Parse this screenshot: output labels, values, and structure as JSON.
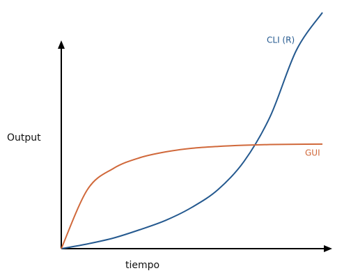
{
  "chart_data": {
    "type": "line",
    "y_label": "Output",
    "x_label": "tiempo",
    "x": [
      0,
      1,
      2,
      3,
      4,
      5,
      6,
      7,
      8,
      9,
      10
    ],
    "xlim": [
      0,
      10
    ],
    "ylim": [
      0,
      10
    ],
    "series": [
      {
        "name": "CLI (R)",
        "color": "#24598f",
        "values": [
          0,
          0.2,
          0.45,
          0.8,
          1.2,
          1.75,
          2.5,
          3.7,
          5.6,
          8.4,
          10
        ]
      },
      {
        "name": "GUI",
        "color": "#d0683a",
        "values": [
          0,
          2.5,
          3.4,
          3.85,
          4.1,
          4.25,
          4.33,
          4.38,
          4.41,
          4.42,
          4.43
        ]
      }
    ]
  }
}
